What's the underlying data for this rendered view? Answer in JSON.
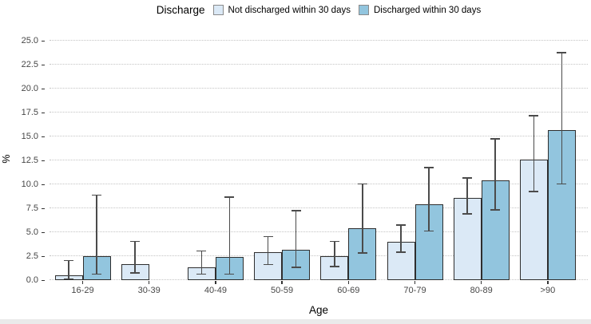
{
  "chart_data": {
    "type": "bar",
    "title": "",
    "legend_title": "Discharge",
    "legend_position": "top",
    "xlabel": "Age",
    "ylabel": "%",
    "grid": "dotted horizontal major gridlines only",
    "ylim": [
      0,
      25.5
    ],
    "categories": [
      "16-29",
      "30-39",
      "40-49",
      "50-59",
      "60-69",
      "70-79",
      "80-89",
      ">90"
    ],
    "series": [
      {
        "name": "Not discharged within 30 days",
        "color": "#dbe9f6",
        "values": [
          0.5,
          1.7,
          1.3,
          2.9,
          2.5,
          4.0,
          8.6,
          12.6
        ],
        "ci_low": [
          0.2,
          0.8,
          0.7,
          1.7,
          1.5,
          3.0,
          7.0,
          9.3
        ],
        "ci_high": [
          2.0,
          4.0,
          3.0,
          4.5,
          4.0,
          5.7,
          10.6,
          17.1
        ]
      },
      {
        "name": "Discharged within 30 days",
        "color": "#92c5de",
        "values": [
          2.5,
          null,
          2.4,
          3.2,
          5.4,
          7.9,
          10.4,
          15.7
        ],
        "ci_low": [
          0.7,
          null,
          0.7,
          1.4,
          2.9,
          5.2,
          7.4,
          10.1
        ],
        "ci_high": [
          8.8,
          null,
          8.6,
          7.2,
          10.0,
          11.7,
          14.7,
          23.7
        ]
      }
    ],
    "y_ticks": [
      {
        "v": 0,
        "label": "0.0"
      },
      {
        "v": 2.5,
        "label": "2.5"
      },
      {
        "v": 5,
        "label": "5.0"
      },
      {
        "v": 7.5,
        "label": "7.5"
      },
      {
        "v": 10,
        "label": "10.0"
      },
      {
        "v": 12.5,
        "label": "12.5"
      },
      {
        "v": 15,
        "label": "15.0"
      },
      {
        "v": 17.5,
        "label": "17.5"
      },
      {
        "v": 20,
        "label": "20.0"
      },
      {
        "v": 22.5,
        "label": "22.5"
      },
      {
        "v": 25,
        "label": "25.0"
      }
    ]
  },
  "colors": {
    "background": "#ffffff",
    "bar_border": "#2e2e2e",
    "error_bar": "#4b4b4b",
    "gridline": "#c4c4c4",
    "tick_text": "#474747",
    "bottom_strip": "#eaeaea"
  }
}
